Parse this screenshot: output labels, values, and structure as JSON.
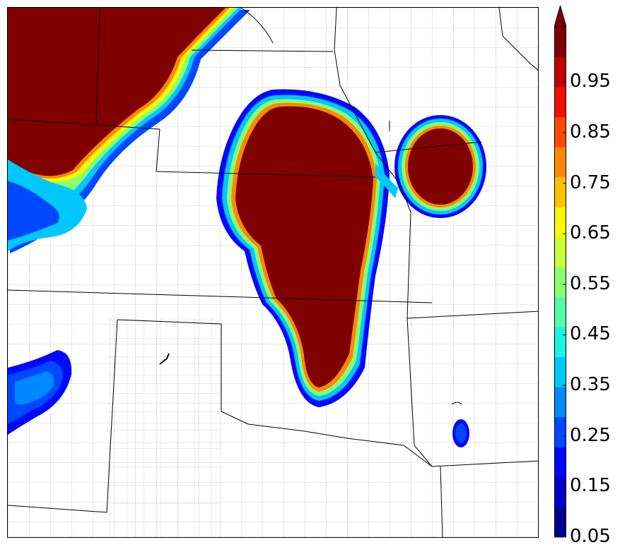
{
  "colorbar": {
    "min": 0.05,
    "max": 1.0,
    "step": 0.05,
    "extend": "max",
    "colors": [
      "#00008f",
      "#0000c8",
      "#0008ff",
      "#0048ff",
      "#0088ff",
      "#00c8ff",
      "#1cf2e0",
      "#50ffa8",
      "#88ff70",
      "#c8ff38",
      "#f8f800",
      "#ffc000",
      "#ff8800",
      "#ff4a00",
      "#f01000",
      "#c00000",
      "#800000"
    ],
    "over_color": "#800000",
    "tick_labels": [
      "0.95",
      "0.85",
      "0.75",
      "0.65",
      "0.55",
      "0.45",
      "0.35",
      "0.25",
      "0.15",
      "0.05"
    ],
    "tick_values": [
      0.95,
      0.85,
      0.75,
      0.65,
      0.55,
      0.45,
      0.35,
      0.25,
      0.15,
      0.05
    ]
  },
  "map": {
    "border_color": "#000000",
    "county_color": "#9a9a9a",
    "state_color": "#000000",
    "background": "#ffffff"
  }
}
